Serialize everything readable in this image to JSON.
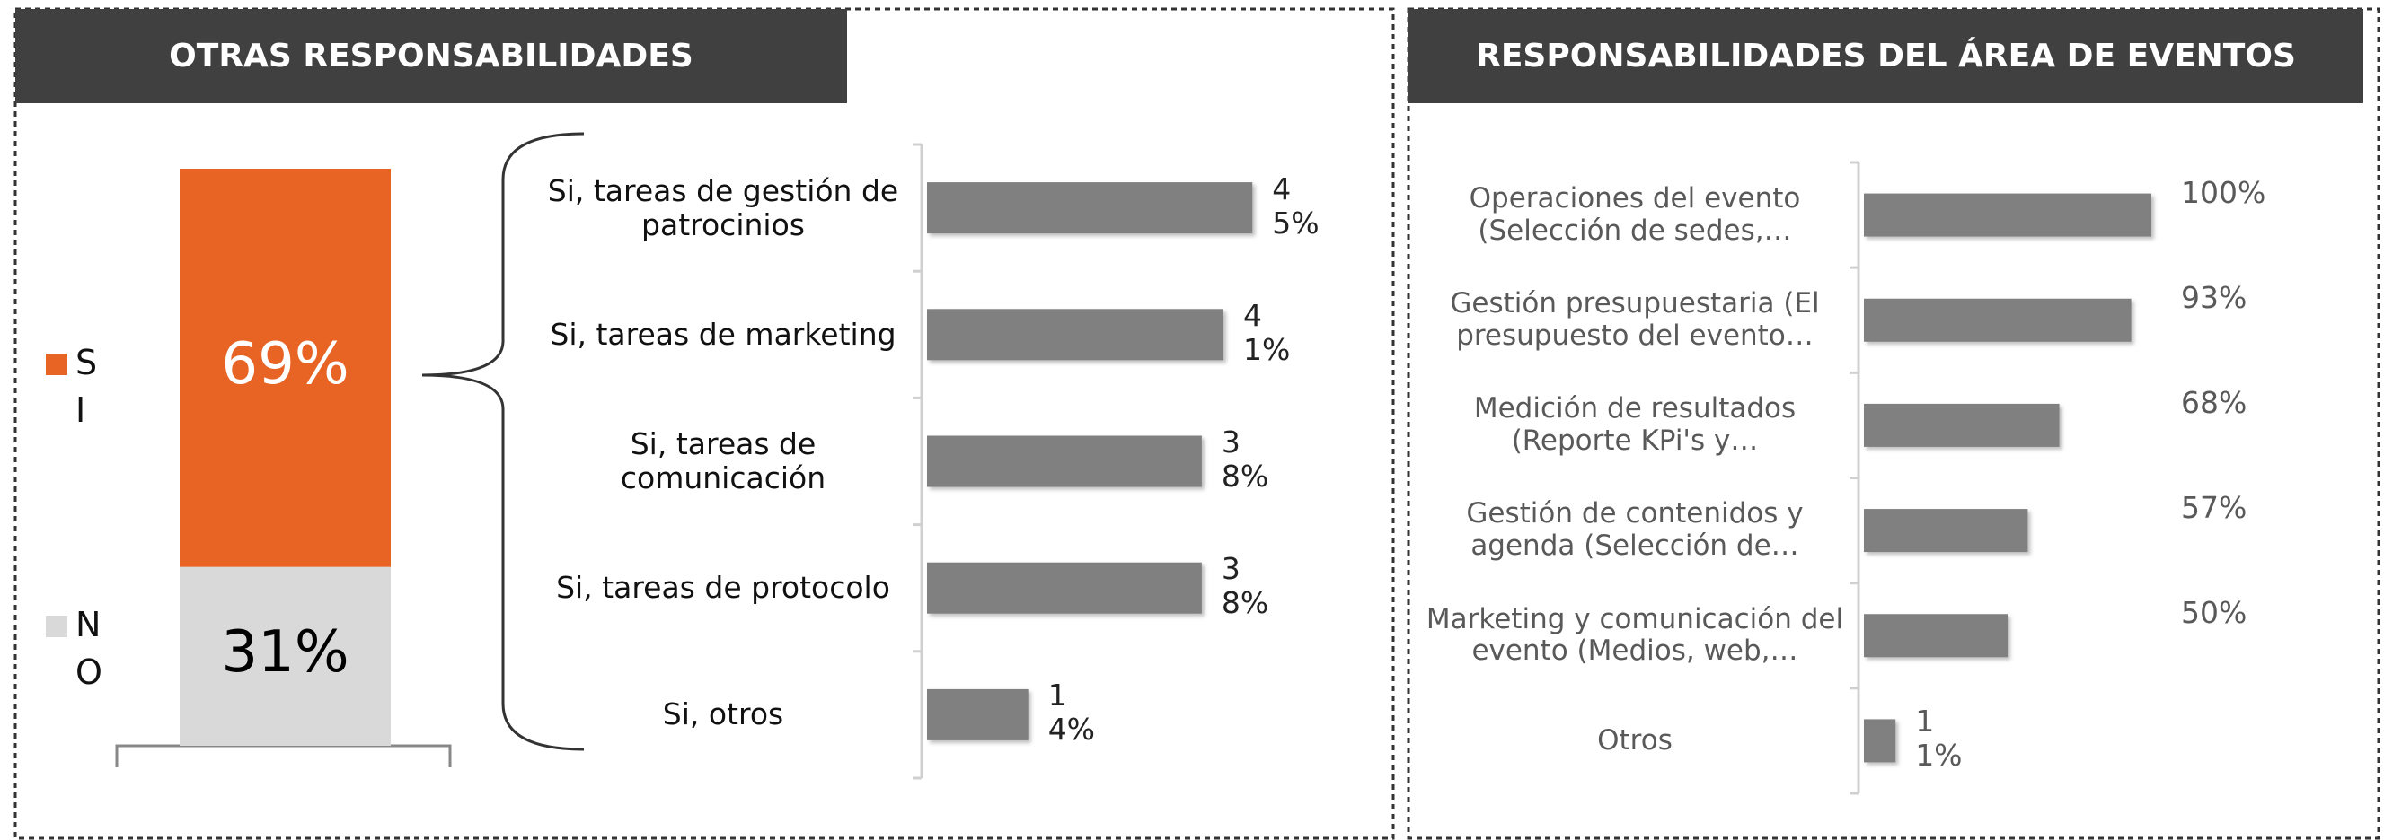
{
  "panels": [
    {
      "title": "OTRAS RESPONSABILIDADES"
    },
    {
      "title": "RESPONSABILIDADES DEL ÁREA DE EVENTOS"
    }
  ],
  "chart_data": [
    {
      "type": "stacked_bar",
      "ylim": [
        0,
        100
      ],
      "series": [
        {
          "name": "SI",
          "color": "#e86424",
          "values": [
            69
          ],
          "value_labels": [
            "69%"
          ]
        },
        {
          "name": "NO",
          "color": "#d9d9d9",
          "values": [
            31
          ],
          "value_labels": [
            "31%"
          ]
        }
      ]
    },
    {
      "type": "hbar",
      "color": "#808080",
      "xlim": [
        0,
        100
      ],
      "categories": [
        "Si, tareas de gestión de patrocinios",
        "Si, tareas de marketing",
        "Si, tareas de comunicación",
        "Si, tareas de protocolo",
        "Si, otros"
      ],
      "values": [
        45,
        41,
        38,
        38,
        14
      ],
      "value_labels": [
        "45%",
        "41%",
        "38%",
        "38%",
        "14%"
      ]
    },
    {
      "type": "hbar",
      "color": "#808080",
      "xlim": [
        0,
        100
      ],
      "categories": [
        "Operaciones del evento (Selección de sedes,…",
        "Gestión presupuestaria (El presupuesto del evento…",
        "Medición de resultados (Reporte KPi's y…",
        "Gestión de contenidos y agenda (Selección de…",
        "Marketing y comunicación del evento (Medios, web,…",
        "Otros"
      ],
      "values": [
        100,
        93,
        68,
        57,
        50,
        11
      ],
      "value_labels": [
        "100%",
        "93%",
        "68%",
        "57%",
        "50%",
        "11%"
      ]
    }
  ]
}
